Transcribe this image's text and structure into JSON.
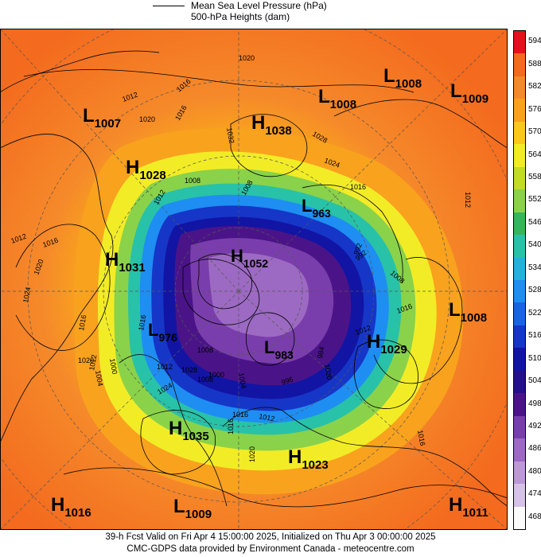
{
  "legend": {
    "line1": "Mean Sea Level Pressure (hPa)",
    "line2": "500-hPa Heights (dam)"
  },
  "colorbar": {
    "labels": [
      "594",
      "588",
      "582",
      "576",
      "570",
      "564",
      "558",
      "552",
      "546",
      "540",
      "534",
      "528",
      "522",
      "516",
      "510",
      "504",
      "498",
      "492",
      "486",
      "480",
      "474",
      "468"
    ],
    "colors": [
      "#e4101e",
      "#f46a1e",
      "#f58a2a",
      "#f9a21e",
      "#f8c81e",
      "#f2ec26",
      "#c2dc26",
      "#8ad24a",
      "#36b65a",
      "#28c2a8",
      "#22b2dc",
      "#1e8ef2",
      "#1a64e4",
      "#1636c8",
      "#1214a4",
      "#24108a",
      "#4a1488",
      "#7a3eac",
      "#9c6ac2",
      "#bc98d6",
      "#d6c2e6",
      "#fbfbfb"
    ]
  },
  "systems": [
    {
      "type": "L",
      "value": "1007"
    },
    {
      "type": "H",
      "value": "1038"
    },
    {
      "type": "L",
      "value": "1008"
    },
    {
      "type": "L",
      "value": "1008"
    },
    {
      "type": "L",
      "value": "1009"
    },
    {
      "type": "H",
      "value": "1028"
    },
    {
      "type": "L",
      "value": "963"
    },
    {
      "type": "H",
      "value": "1031"
    },
    {
      "type": "H",
      "value": "1052"
    },
    {
      "type": "L",
      "value": "976"
    },
    {
      "type": "L",
      "value": "983"
    },
    {
      "type": "H",
      "value": "1029"
    },
    {
      "type": "L",
      "value": "1008"
    },
    {
      "type": "H",
      "value": "1035"
    },
    {
      "type": "H",
      "value": "1023"
    },
    {
      "type": "H",
      "value": "1016"
    },
    {
      "type": "L",
      "value": "1009"
    },
    {
      "type": "H",
      "value": "1011"
    }
  ],
  "isobar_labels": [
    "1012",
    "1016",
    "1020",
    "1016",
    "1020",
    "1032",
    "1028",
    "1024",
    "1016",
    "1012",
    "1012",
    "1016",
    "1020",
    "1024",
    "1008",
    "1012",
    "1008",
    "1016",
    "1020",
    "1004",
    "1000",
    "992",
    "984",
    "1008",
    "1016",
    "1012",
    "1020",
    "1016",
    "1008",
    "1004",
    "1000",
    "1008",
    "1024",
    "1028",
    "1012",
    "1016",
    "1012",
    "1016",
    "1020",
    "1012",
    "1016",
    "992",
    "996"
  ],
  "footer": {
    "line1": "39-h Fcst Valid on Fri Apr  4 15:00:00 2025, Initialized on Thu Apr  3 00:00:00 2025",
    "line2": "CMC-GDPS data provided by Environment Canada - meteocentre.com"
  }
}
